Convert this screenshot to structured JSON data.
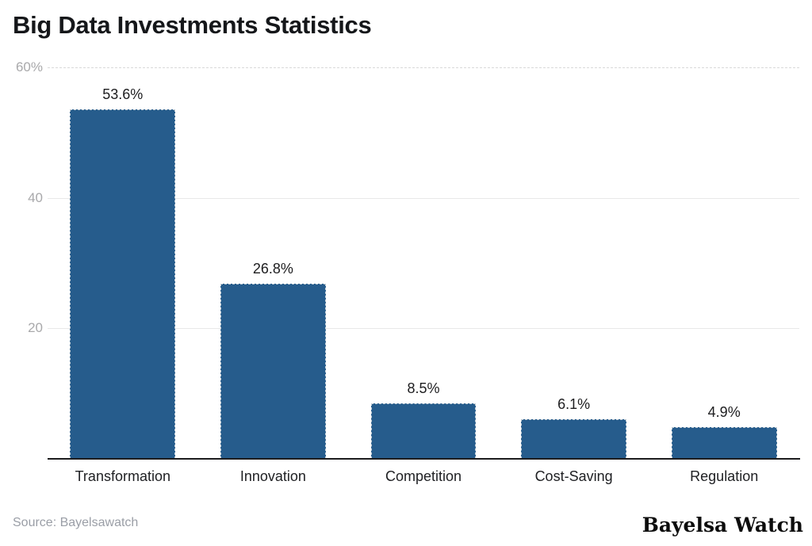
{
  "title": "Big Data Investments Statistics",
  "chart_data": {
    "type": "bar",
    "title": "Big Data Investments Statistics",
    "categories": [
      "Transformation",
      "Innovation",
      "Competition",
      "Cost-Saving",
      "Regulation"
    ],
    "values": [
      53.6,
      26.8,
      8.5,
      6.1,
      4.9
    ],
    "value_labels": [
      "53.6%",
      "26.8%",
      "8.5%",
      "6.1%",
      "4.9%"
    ],
    "xlabel": "",
    "ylabel": "",
    "ylim": [
      0,
      60
    ],
    "yticks": [
      {
        "value": 60,
        "label": "60%"
      },
      {
        "value": 40,
        "label": "40"
      },
      {
        "value": 20,
        "label": "20"
      }
    ],
    "grid": true,
    "legend": false,
    "bar_color": "#265c8c"
  },
  "footer": {
    "source": "Source: Bayelsawatch",
    "brand": "Bayelsa Watch"
  },
  "colors": {
    "title": "#15171a",
    "bar": "#265c8c",
    "bar_outline": "#c3ced6",
    "grid": "#e8e8e8",
    "grid_dashed": "#d9d9d9",
    "tick_label": "#a9a9ab",
    "value_label": "#1d1d1f",
    "category_label": "#202124",
    "baseline": "#1c1c1e",
    "source": "#9a9ea6",
    "brand": "#0c0c0c"
  }
}
